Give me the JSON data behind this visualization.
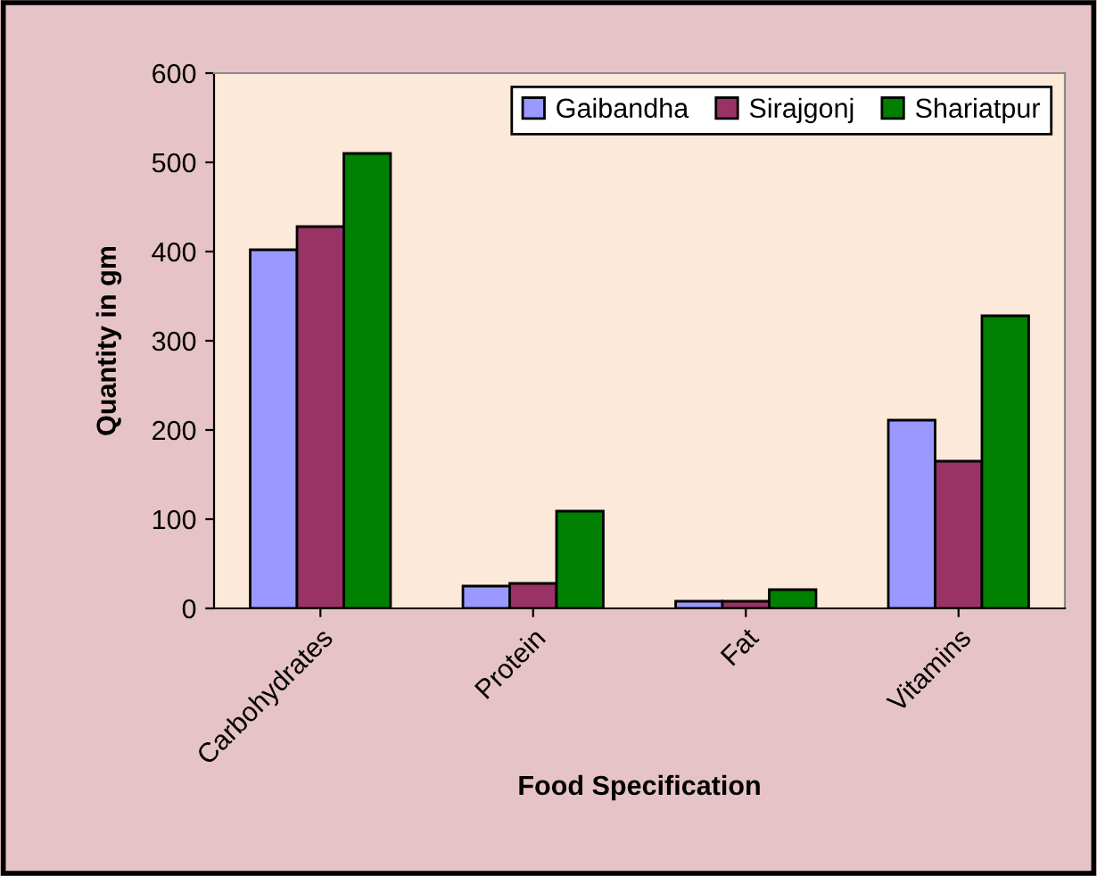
{
  "chart_data": {
    "type": "bar",
    "xlabel": "Food Specification",
    "ylabel": "Quantity in gm",
    "categories": [
      "Carbohydrates",
      "Protein",
      "Fat",
      "Vitamins"
    ],
    "series": [
      {
        "name": "Gaibandha",
        "color": "#9999ff",
        "values": [
          402,
          25,
          8,
          211
        ]
      },
      {
        "name": "Sirajgonj",
        "color": "#993366",
        "values": [
          428,
          28,
          8,
          165
        ]
      },
      {
        "name": "Shariatpur",
        "color": "#008000",
        "values": [
          510,
          109,
          21,
          328
        ]
      }
    ],
    "ylim": [
      0,
      600
    ],
    "yticks": [
      0,
      100,
      200,
      300,
      400,
      500,
      600
    ],
    "grid": false,
    "legend": "top right"
  }
}
